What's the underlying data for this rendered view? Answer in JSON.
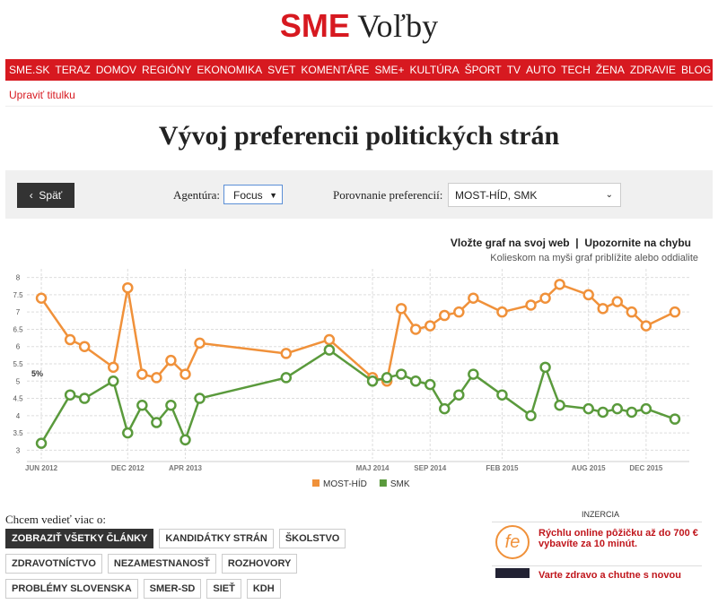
{
  "header": {
    "logo": "SME",
    "section": "Voľby"
  },
  "nav": [
    "SME.SK",
    "TERAZ",
    "DOMOV",
    "REGIÓNY",
    "EKONOMIKA",
    "SVET",
    "KOMENTÁRE",
    "SME+",
    "KULTÚRA",
    "ŠPORT",
    "TV",
    "AUTO",
    "TECH",
    "ŽENA",
    "ZDRAVIE",
    "BLOG"
  ],
  "edit_link": "Upraviť titulku",
  "page_title": "Vývoj preferencii politických strán",
  "controls": {
    "back": "Späť",
    "agency_label": "Agentúra:",
    "agency": "Focus",
    "compare_label": "Porovnanie preferencií:",
    "compare": "MOST-HÍD, SMK"
  },
  "links": {
    "embed": "Vložte graf na svoj web",
    "report": "Upozornite na chybu",
    "hint": "Kolieskom na myši graf priblížite alebo oddialite"
  },
  "chart_data": {
    "type": "line",
    "x": [
      "2012-06",
      "2012-08",
      "2012-09",
      "2012-11",
      "2012-12",
      "2013-01",
      "2013-02",
      "2013-03",
      "2013-04",
      "2013-05",
      "2013-11",
      "2014-02",
      "2014-05",
      "2014-06",
      "2014-07",
      "2014-08",
      "2014-09",
      "2014-10",
      "2014-11",
      "2014-12",
      "2015-02",
      "2015-04",
      "2015-05",
      "2015-06",
      "2015-08",
      "2015-09",
      "2015-10",
      "2015-11",
      "2015-12",
      "2016-02"
    ],
    "series": [
      {
        "name": "MOST-HÍD",
        "color": "#f0913a",
        "values": [
          7.4,
          6.2,
          6.0,
          5.4,
          7.7,
          5.2,
          5.1,
          5.6,
          5.2,
          6.1,
          5.8,
          6.2,
          5.1,
          5.0,
          7.1,
          6.5,
          6.6,
          6.9,
          7.0,
          7.4,
          7.0,
          7.2,
          7.4,
          7.8,
          7.5,
          7.1,
          7.3,
          7.0,
          6.6,
          7.0
        ]
      },
      {
        "name": "SMK",
        "color": "#5a9a3c",
        "values": [
          3.2,
          4.6,
          4.5,
          5.0,
          3.5,
          4.3,
          3.8,
          4.3,
          3.3,
          4.5,
          5.1,
          5.9,
          5.0,
          5.1,
          5.2,
          5.0,
          4.9,
          4.2,
          4.6,
          5.2,
          4.6,
          4.0,
          5.4,
          4.3,
          4.2,
          4.1,
          4.2,
          4.1,
          4.2,
          3.9
        ]
      }
    ],
    "xlim": [
      "2012-05",
      "2016-03"
    ],
    "xticks": [
      {
        "value": "2012-06",
        "label": "JUN 2012"
      },
      {
        "value": "2012-12",
        "label": "DEC 2012"
      },
      {
        "value": "2013-04",
        "label": "APR 2013"
      },
      {
        "value": "2014-05",
        "label": "MAJ 2014"
      },
      {
        "value": "2014-09",
        "label": "SEP 2014"
      },
      {
        "value": "2015-02",
        "label": "FEB 2015"
      },
      {
        "value": "2015-08",
        "label": "AUG 2015"
      },
      {
        "value": "2015-12",
        "label": "DEC 2015"
      }
    ],
    "ylim": [
      2.75,
      8.25
    ],
    "yticks": [
      3,
      3.5,
      4,
      4.5,
      5,
      5.5,
      6,
      6.5,
      7,
      7.5,
      8
    ],
    "annotation": "5%",
    "grid": true,
    "legend": "bottom"
  },
  "more": {
    "label": "Chcem vedieť viac o:",
    "tags": [
      "ZOBRAZIŤ VŠETKY ČLÁNKY",
      "KANDIDÁTKY STRÁN",
      "ŠKOLSTVO",
      "ZDRAVOTNÍCTVO",
      "NEZAMESTNANOSŤ",
      "ROZHOVORY",
      "PROBLÉMY SLOVENSKA",
      "SMER-SD",
      "SIEŤ",
      "KDH"
    ]
  },
  "ads": {
    "label": "INZERCIA",
    "items": [
      {
        "logo": "fe",
        "text": "Rýchlu online pôžičku až do 700 € vybavíte za 10 minút."
      },
      {
        "text": "Varte zdravo a chutne s novou"
      }
    ]
  }
}
